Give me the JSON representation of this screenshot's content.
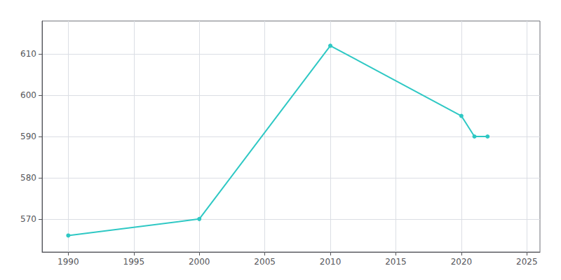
{
  "chart_data": {
    "type": "line",
    "x": [
      1990,
      2000,
      2010,
      2020,
      2021,
      2022
    ],
    "values": [
      566,
      570,
      612,
      595,
      590,
      590
    ],
    "color": "#2EC8C4",
    "marker": "circle",
    "xlim": [
      1988,
      2026
    ],
    "ylim": [
      562,
      618
    ],
    "xticks": [
      1990,
      1995,
      2000,
      2005,
      2010,
      2015,
      2020,
      2025
    ],
    "yticks": [
      570,
      580,
      590,
      600,
      610
    ],
    "grid": true
  }
}
